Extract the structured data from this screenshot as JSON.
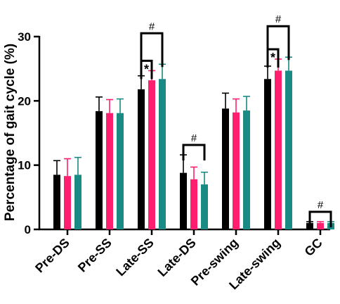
{
  "chart_data": {
    "type": "bar",
    "title": "",
    "xlabel": "",
    "ylabel": "Percentage of gait cycle (%)",
    "ylim": [
      0,
      30
    ],
    "yticks": [
      0,
      10,
      20,
      30
    ],
    "grid": false,
    "categories": [
      "Pre-DS",
      "Pre-SS",
      "Late-SS",
      "Late-DS",
      "Pre-swing",
      "Late-swing",
      "GC"
    ],
    "series": [
      {
        "color": "#000000",
        "values": [
          8.5,
          18.4,
          21.8,
          8.8,
          18.8,
          23.4,
          1.0
        ],
        "errors": [
          2.2,
          2.2,
          2.1,
          2.8,
          2.4,
          2.0,
          0.2
        ]
      },
      {
        "color": "#ff1f6e",
        "values": [
          8.3,
          18.1,
          23.2,
          7.8,
          18.2,
          24.7,
          1.0
        ],
        "errors": [
          2.7,
          2.1,
          1.5,
          1.9,
          2.1,
          1.8,
          0.2
        ]
      },
      {
        "color": "#1a8a84",
        "values": [
          8.5,
          18.1,
          23.4,
          7.0,
          18.5,
          24.7,
          1.0
        ],
        "errors": [
          2.7,
          2.2,
          2.3,
          1.9,
          2.2,
          2.1,
          0.2
        ]
      }
    ],
    "annotations": [
      {
        "category_index": 2,
        "text": "#",
        "from_series": 0,
        "to_series": 2,
        "level": 2
      },
      {
        "category_index": 2,
        "text": "*",
        "from_series": 0,
        "to_series": 1,
        "level": 1
      },
      {
        "category_index": 3,
        "text": "#",
        "from_series": 0,
        "to_series": 2,
        "level": 1
      },
      {
        "category_index": 5,
        "text": "#",
        "from_series": 0,
        "to_series": 2,
        "level": 2
      },
      {
        "category_index": 5,
        "text": "*",
        "from_series": 0,
        "to_series": 1,
        "level": 1
      },
      {
        "category_index": 6,
        "text": "#",
        "from_series": 0,
        "to_series": 2,
        "level": 1
      }
    ]
  }
}
